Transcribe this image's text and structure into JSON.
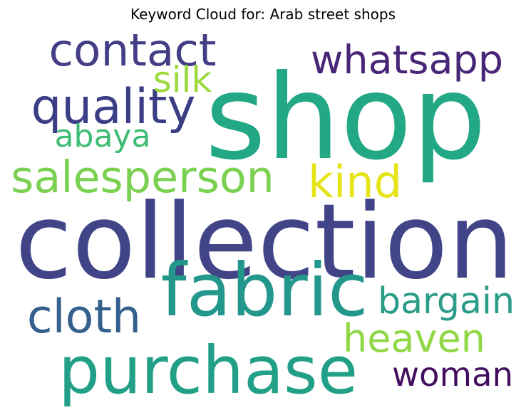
{
  "chart_data": {
    "type": "wordcloud",
    "title": "Keyword Cloud for: Arab street shops",
    "words": [
      {
        "text": "shop",
        "weight": 1.0,
        "color": "#22a884"
      },
      {
        "text": "collection",
        "weight": 0.95,
        "color": "#414487"
      },
      {
        "text": "purchase",
        "weight": 0.7,
        "color": "#22a087"
      },
      {
        "text": "fabric",
        "weight": 0.62,
        "color": "#23978c"
      },
      {
        "text": "contact",
        "weight": 0.45,
        "color": "#433e85"
      },
      {
        "text": "whatsapp",
        "weight": 0.42,
        "color": "#482677"
      },
      {
        "text": "quality",
        "weight": 0.42,
        "color": "#3b3e84"
      },
      {
        "text": "salesperson",
        "weight": 0.4,
        "color": "#7ad151"
      },
      {
        "text": "woman",
        "weight": 0.4,
        "color": "#440f5e"
      },
      {
        "text": "cloth",
        "weight": 0.4,
        "color": "#33608d"
      },
      {
        "text": "heaven",
        "weight": 0.38,
        "color": "#8fd744"
      },
      {
        "text": "kind",
        "weight": 0.36,
        "color": "#e5e419"
      },
      {
        "text": "bargain",
        "weight": 0.33,
        "color": "#2a9c87"
      },
      {
        "text": "abaya",
        "weight": 0.3,
        "color": "#3dbc74"
      },
      {
        "text": "silk",
        "weight": 0.3,
        "color": "#9bd93c"
      }
    ]
  }
}
